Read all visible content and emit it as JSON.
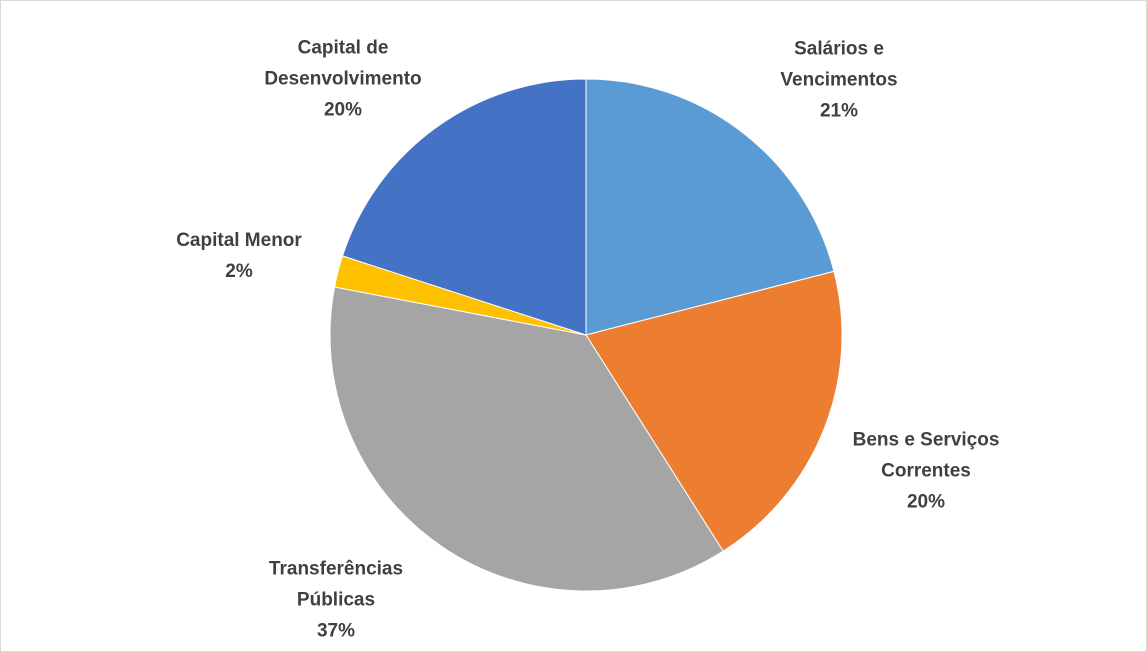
{
  "chart_data": {
    "type": "pie",
    "categories": [
      "Salários e Vencimentos",
      "Bens e Serviços Correntes",
      "Transferências Públicas",
      "Capital Menor",
      "Capital de Desenvolvimento"
    ],
    "values": [
      21,
      20,
      37,
      2,
      20
    ],
    "value_labels": [
      "21%",
      "20%",
      "37%",
      "2%",
      "20%"
    ],
    "colors": [
      "#5b9bd5",
      "#ed7d31",
      "#a5a5a5",
      "#ffc000",
      "#4472c4"
    ]
  }
}
